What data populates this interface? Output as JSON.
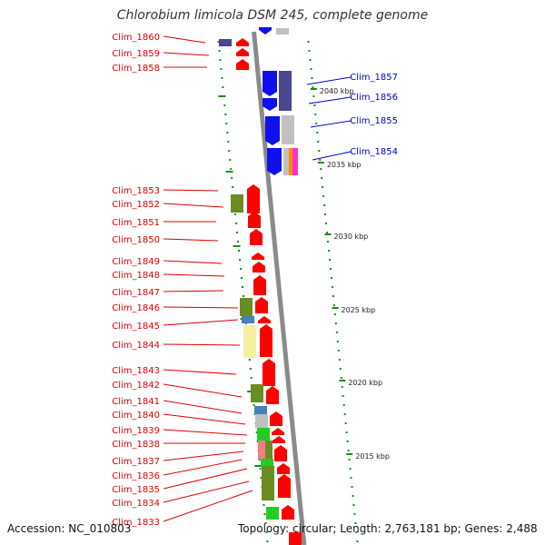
{
  "title": "Chlorobium limicola DSM 245, complete genome",
  "footer": {
    "accession": "Accession: NC_010803",
    "summary": "Topology: circular; Length: 2,763,181 bp; Genes: 2,488"
  },
  "colors": {
    "backbone": "#8a8a8a",
    "feature_red": "#ff0000",
    "feature_blue": "#1010ee",
    "label_red": "#dd0000",
    "label_blue": "#0000cc",
    "tick_green": "#1a8c1a",
    "olive": "#6b8c23",
    "steel_blue": "#4682b4",
    "light_grey": "#c0c0c0",
    "slate": "#484890",
    "pale_yellow": "#f4f0a0",
    "lime": "#22cc22",
    "salmon": "#f08080",
    "orange": "#ff8800",
    "magenta": "#ff33cc"
  },
  "scale_labels": [
    "2040 kbp",
    "2035 kbp",
    "2030 kbp",
    "2025 kbp",
    "2020 kbp",
    "2015 kbp"
  ],
  "gene_labels_left": [
    "Clim_1860",
    "Clim_1859",
    "Clim_1858",
    "Clim_1853",
    "Clim_1852",
    "Clim_1851",
    "Clim_1850",
    "Clim_1849",
    "Clim_1848",
    "Clim_1847",
    "Clim_1846",
    "Clim_1845",
    "Clim_1844",
    "Clim_1843",
    "Clim_1842",
    "Clim_1841",
    "Clim_1840",
    "Clim_1839",
    "Clim_1838",
    "Clim_1837",
    "Clim_1836",
    "Clim_1835",
    "Clim_1834",
    "Clim_1833"
  ],
  "gene_labels_right": [
    "Clim_1857",
    "Clim_1856",
    "Clim_1855",
    "Clim_1854"
  ]
}
